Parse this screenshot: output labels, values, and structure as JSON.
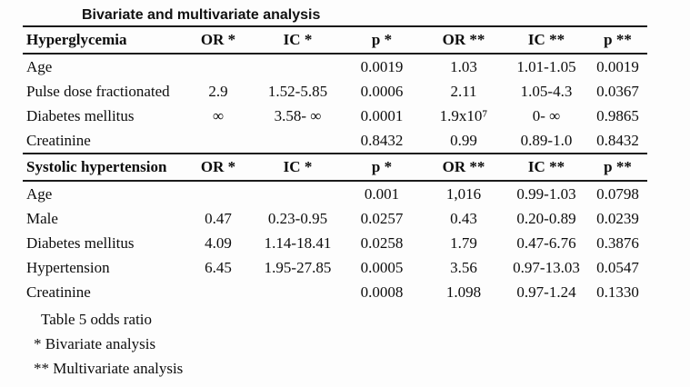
{
  "title": "Bivariate and multivariate analysis",
  "tables": [
    {
      "section": "Hyperglycemia",
      "headers": [
        "Hyperglycemia",
        "OR *",
        "IC *",
        "p *",
        "OR **",
        "IC **",
        "p **"
      ],
      "rows": [
        [
          "Age",
          "",
          "",
          "0.0019",
          "1.03",
          "1.01-1.05",
          "0.0019"
        ],
        [
          "Pulse dose fractionated",
          "2.9",
          "1.52-5.85",
          "0.0006",
          "2.11",
          "1.05-4.3",
          "0.0367"
        ],
        [
          "Diabetes mellitus",
          "∞",
          "3.58- ∞",
          "0.0001",
          "1.9x10⁷",
          "0- ∞",
          "0.9865"
        ],
        [
          "Creatinine",
          "",
          "",
          "0.8432",
          "0.99",
          "0.89-1.0",
          "0.8432"
        ]
      ]
    },
    {
      "section": "Systolic hypertension",
      "headers": [
        "Systolic hypertension",
        "OR *",
        "IC *",
        "p *",
        "OR **",
        "IC **",
        "p **"
      ],
      "rows": [
        [
          "Age",
          "",
          "",
          "0.001",
          "1,016",
          "0.99-1.03",
          "0.0798"
        ],
        [
          "Male",
          "0.47",
          "0.23-0.95",
          "0.0257",
          "0.43",
          "0.20-0.89",
          "0.0239"
        ],
        [
          "Diabetes mellitus",
          "4.09",
          "1.14-18.41",
          "0.0258",
          "1.79",
          "0.47-6.76",
          "0.3876"
        ],
        [
          "Hypertension",
          "6.45",
          "1.95-27.85",
          "0.0005",
          "3.56",
          "0.97-13.03",
          "0.0547"
        ],
        [
          "Creatinine",
          "",
          "",
          "0.0008",
          "1.098",
          "0.97-1.24",
          "0.1330"
        ]
      ]
    }
  ],
  "footnotes": [
    "Table 5 odds ratio",
    "* Bivariate analysis",
    "** Multivariate analysis"
  ]
}
